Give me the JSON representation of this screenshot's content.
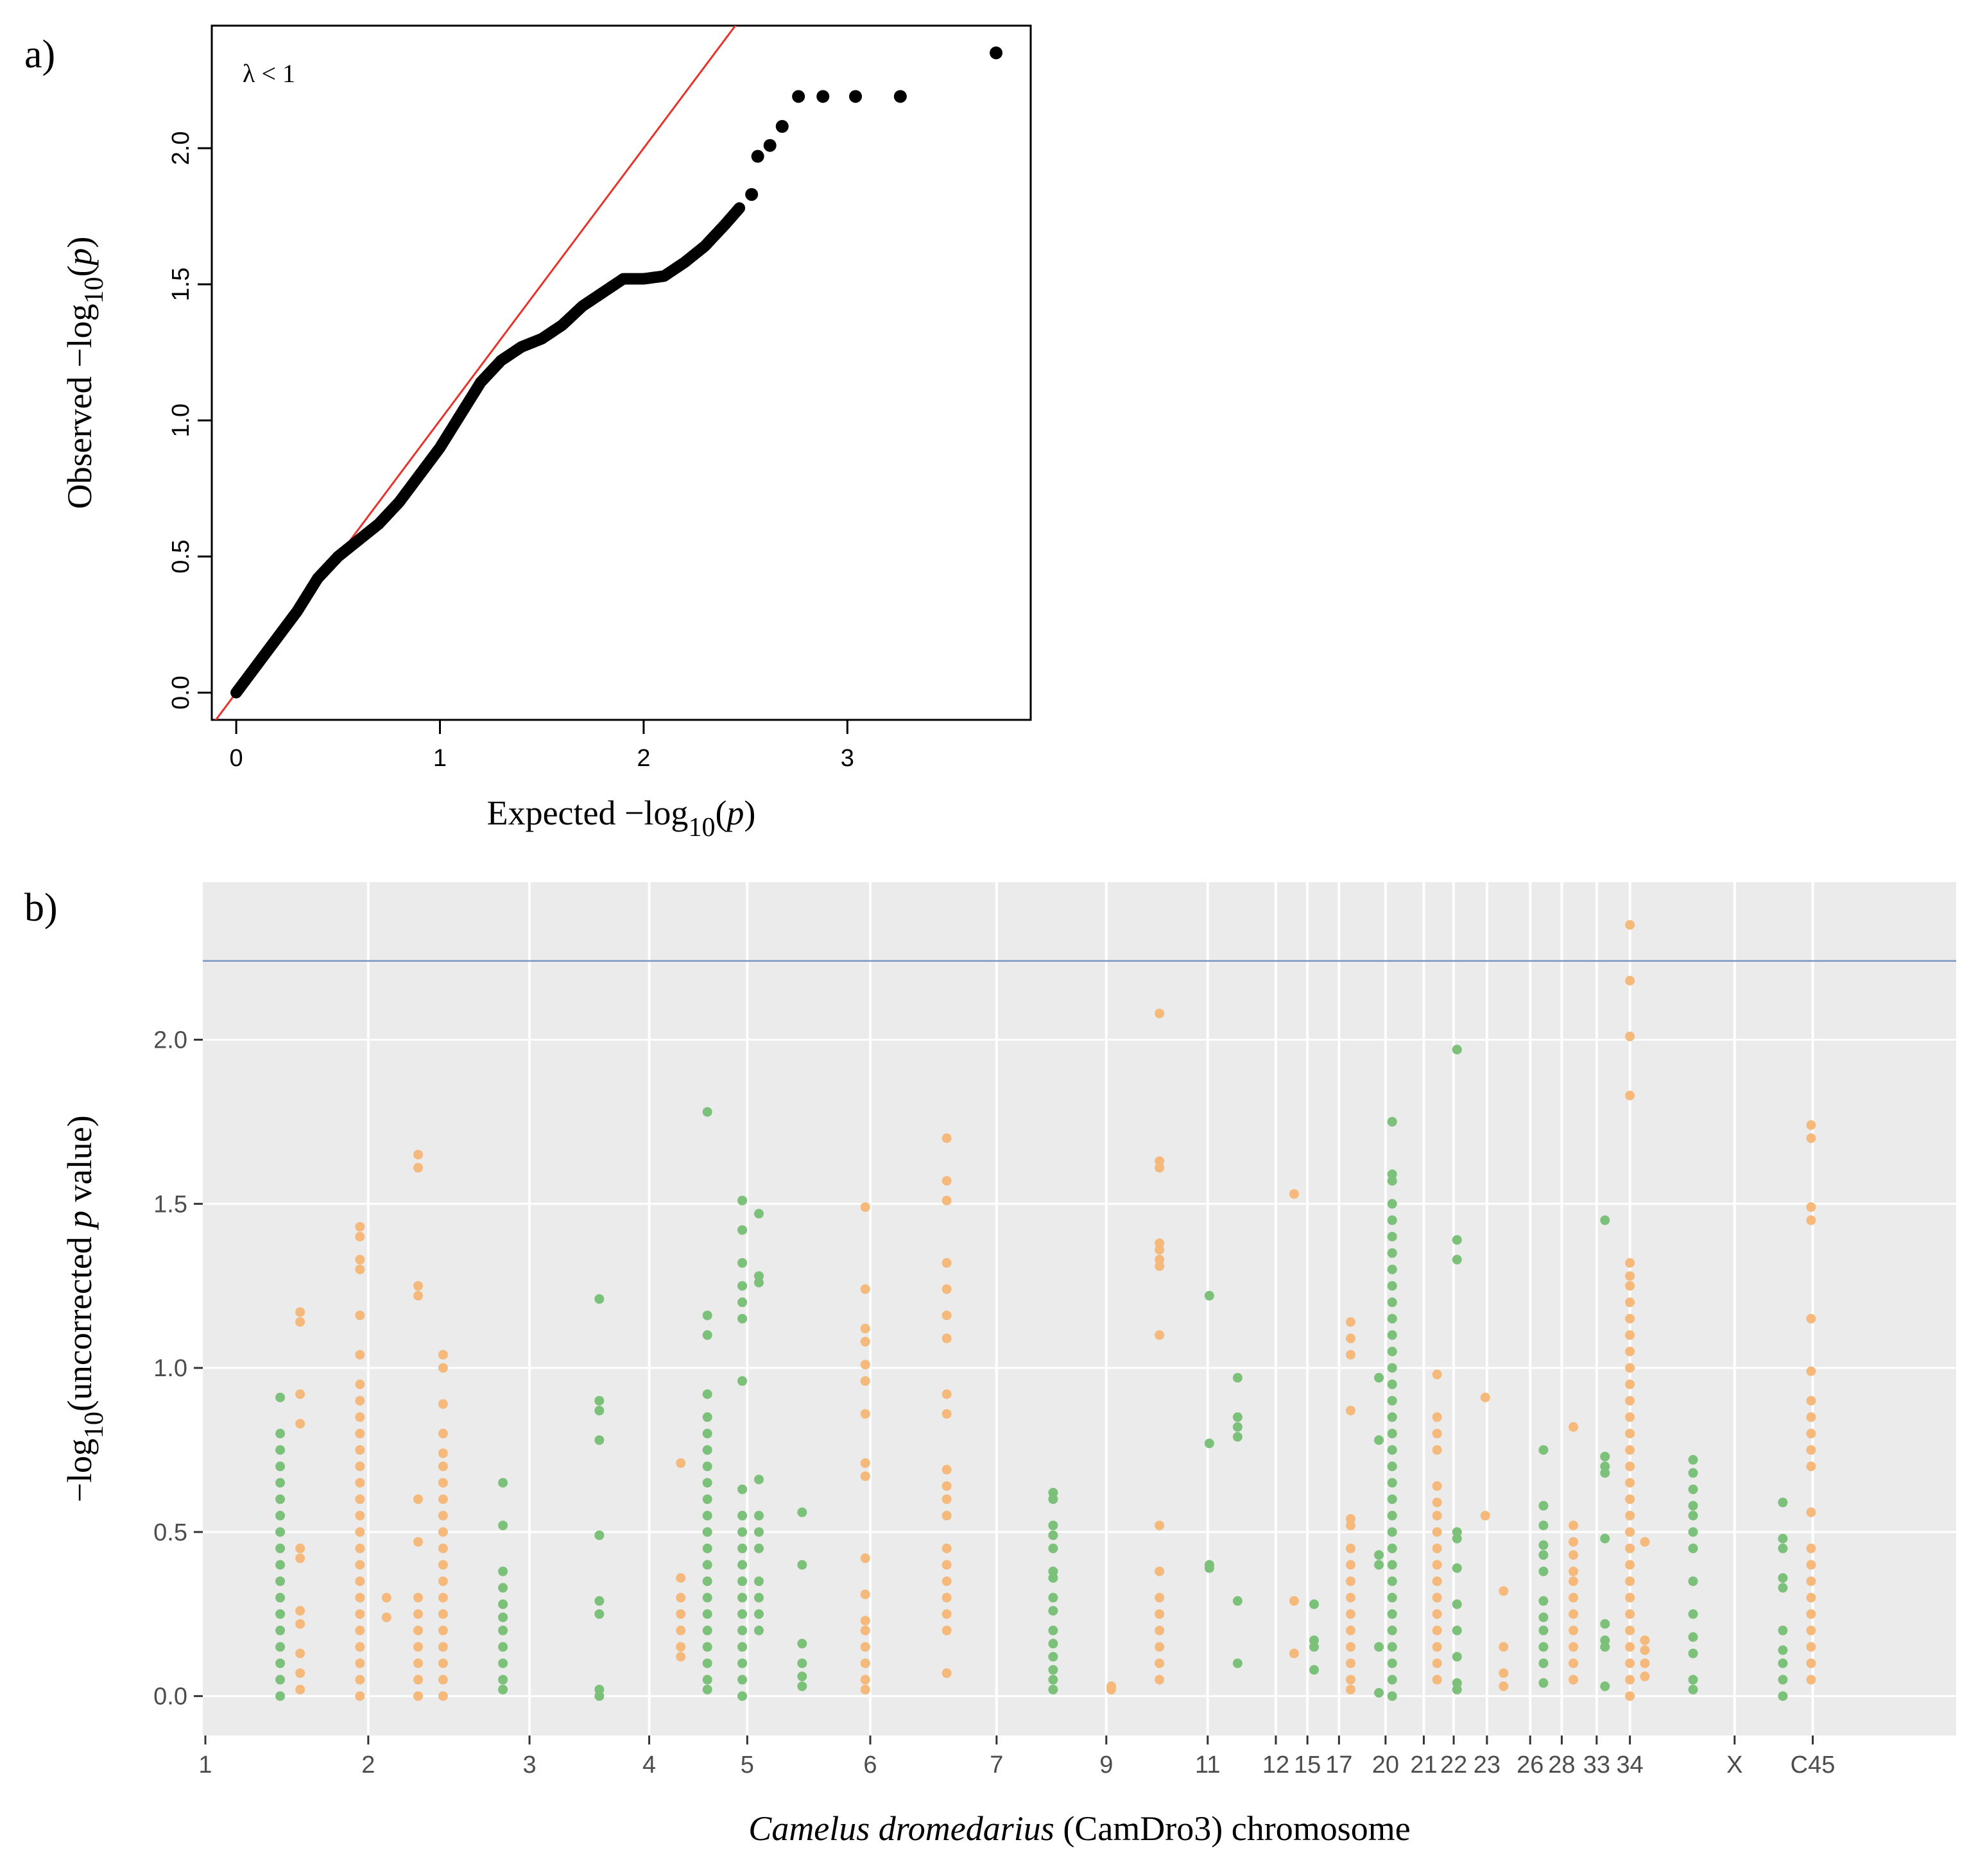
{
  "figure": {
    "panel_a_label": "a)",
    "panel_b_label": "b)",
    "colors": {
      "qq_points": "#000000",
      "qq_line": "#e8332a",
      "manhattan_bg": "#ebebeb",
      "grid": "#ffffff",
      "threshold": "#7a97c4",
      "orange": "#f5b97c",
      "green": "#7cc17a",
      "axis_text": "#4d4d4d"
    }
  },
  "chart_data": [
    {
      "type": "scatter",
      "subtype": "qq-plot",
      "title": "",
      "annotation": "λ < 1",
      "xlabel": {
        "prefix": "Expected −log",
        "sub": "10",
        "suffix_open": "(",
        "italic": "p",
        "suffix_close": ")"
      },
      "ylabel": {
        "prefix": "Observed −log",
        "sub": "10",
        "suffix_open": "(",
        "italic": "p",
        "suffix_close": ")"
      },
      "xlim": [
        -0.12,
        3.9
      ],
      "ylim": [
        -0.1,
        2.45
      ],
      "xticks": [
        0,
        1,
        2,
        3
      ],
      "xtick_labels": [
        "0",
        "1",
        "2",
        "3"
      ],
      "yticks": [
        0.0,
        0.5,
        1.0,
        1.5,
        2.0
      ],
      "ytick_labels": [
        "0.0",
        "0.5",
        "1.0",
        "1.5",
        "2.0"
      ],
      "reference_line": {
        "intercept": 0,
        "slope": 1
      },
      "curve_points": [
        [
          0.0,
          0.0
        ],
        [
          0.1,
          0.1
        ],
        [
          0.2,
          0.2
        ],
        [
          0.3,
          0.3
        ],
        [
          0.4,
          0.42
        ],
        [
          0.5,
          0.5
        ],
        [
          0.6,
          0.56
        ],
        [
          0.7,
          0.62
        ],
        [
          0.8,
          0.7
        ],
        [
          0.9,
          0.8
        ],
        [
          1.0,
          0.9
        ],
        [
          1.1,
          1.02
        ],
        [
          1.2,
          1.14
        ],
        [
          1.3,
          1.22
        ],
        [
          1.4,
          1.27
        ],
        [
          1.5,
          1.3
        ],
        [
          1.6,
          1.35
        ],
        [
          1.7,
          1.42
        ],
        [
          1.8,
          1.47
        ],
        [
          1.9,
          1.52
        ],
        [
          2.0,
          1.52
        ],
        [
          2.1,
          1.53
        ],
        [
          2.2,
          1.58
        ],
        [
          2.3,
          1.64
        ],
        [
          2.4,
          1.72
        ],
        [
          2.47,
          1.78
        ]
      ],
      "isolated_points": [
        [
          2.53,
          1.83
        ],
        [
          2.56,
          1.97
        ],
        [
          2.62,
          2.01
        ],
        [
          2.68,
          2.08
        ],
        [
          2.76,
          2.19
        ],
        [
          2.88,
          2.19
        ],
        [
          3.04,
          2.19
        ],
        [
          3.26,
          2.19
        ],
        [
          3.73,
          2.35
        ]
      ]
    },
    {
      "type": "scatter",
      "subtype": "manhattan",
      "title": "",
      "xlabel": {
        "italic": "Camelus dromedarius",
        "rest": " (CamDro3) chromosome"
      },
      "ylabel": {
        "prefix": "−log",
        "sub": "10",
        "middle": "(uncorrected ",
        "italic": "p",
        "suffix": " value)"
      },
      "ylim": [
        -0.12,
        2.48
      ],
      "yticks": [
        0.0,
        0.5,
        1.0,
        1.5,
        2.0
      ],
      "ytick_labels": [
        "0.0",
        "0.5",
        "1.0",
        "1.5",
        "2.0"
      ],
      "threshold": 2.24,
      "x_range": [
        0,
        1000
      ],
      "chromosome_ticks": [
        {
          "label": "1",
          "pos": 0
        },
        {
          "label": "2",
          "pos": 98
        },
        {
          "label": "3",
          "pos": 195
        },
        {
          "label": "4",
          "pos": 267
        },
        {
          "label": "5",
          "pos": 326
        },
        {
          "label": "6",
          "pos": 400
        },
        {
          "label": "7",
          "pos": 476
        },
        {
          "label": "9",
          "pos": 542
        },
        {
          "label": "11",
          "pos": 603
        },
        {
          "label": "12",
          "pos": 644
        },
        {
          "label": "15",
          "pos": 663
        },
        {
          "label": "17",
          "pos": 682
        },
        {
          "label": "20",
          "pos": 710
        },
        {
          "label": "21",
          "pos": 733
        },
        {
          "label": "22",
          "pos": 751
        },
        {
          "label": "23",
          "pos": 771
        },
        {
          "label": "26",
          "pos": 797
        },
        {
          "label": "28",
          "pos": 816
        },
        {
          "label": "33",
          "pos": 837
        },
        {
          "label": "34",
          "pos": 857
        },
        {
          "label": "X",
          "pos": 920
        },
        {
          "label": "C45",
          "pos": 967
        }
      ],
      "boundaries": [
        0,
        98,
        195,
        267,
        326,
        400,
        476,
        542,
        603,
        644,
        663,
        682,
        710,
        733,
        751,
        771,
        797,
        816,
        837,
        857,
        920,
        967
      ],
      "clusters": [
        {
          "x": 45,
          "color": "green",
          "values": [
            0.91,
            0.8,
            0.75,
            0.7,
            0.65,
            0.6,
            0.55,
            0.5,
            0.45,
            0.4,
            0.35,
            0.3,
            0.25,
            0.2,
            0.15,
            0.1,
            0.05,
            0.0
          ]
        },
        {
          "x": 57,
          "color": "orange",
          "values": [
            1.17,
            1.14,
            0.92,
            0.83,
            0.45,
            0.42,
            0.26,
            0.22,
            0.13,
            0.07,
            0.02
          ]
        },
        {
          "x": 93,
          "color": "orange",
          "values": [
            1.43,
            1.4,
            1.33,
            1.3,
            1.16,
            1.04,
            0.95,
            0.9,
            0.85,
            0.8,
            0.75,
            0.7,
            0.65,
            0.6,
            0.55,
            0.5,
            0.45,
            0.4,
            0.35,
            0.3,
            0.25,
            0.2,
            0.15,
            0.1,
            0.05,
            0.0
          ]
        },
        {
          "x": 109,
          "color": "orange",
          "values": [
            0.3,
            0.24
          ]
        },
        {
          "x": 128,
          "color": "orange",
          "values": [
            1.65,
            1.61,
            1.25,
            1.22,
            0.6,
            0.47,
            0.3,
            0.25,
            0.2,
            0.15,
            0.1,
            0.05,
            0.0
          ]
        },
        {
          "x": 143,
          "color": "orange",
          "values": [
            1.04,
            1.0,
            0.89,
            0.8,
            0.74,
            0.7,
            0.65,
            0.6,
            0.55,
            0.5,
            0.45,
            0.4,
            0.35,
            0.3,
            0.25,
            0.2,
            0.15,
            0.1,
            0.05,
            0.0
          ]
        },
        {
          "x": 179,
          "color": "green",
          "values": [
            0.65,
            0.52,
            0.38,
            0.33,
            0.28,
            0.24,
            0.2,
            0.15,
            0.1,
            0.05,
            0.02
          ]
        },
        {
          "x": 237,
          "color": "green",
          "values": [
            1.21,
            0.9,
            0.87,
            0.78,
            0.49,
            0.29,
            0.25,
            0.02,
            0.0
          ]
        },
        {
          "x": 286,
          "color": "orange",
          "values": [
            0.71,
            0.36,
            0.3,
            0.25,
            0.2,
            0.15,
            0.12
          ]
        },
        {
          "x": 302,
          "color": "green",
          "values": [
            1.78,
            1.16,
            1.1,
            0.92,
            0.85,
            0.8,
            0.75,
            0.7,
            0.65,
            0.6,
            0.55,
            0.5,
            0.45,
            0.4,
            0.35,
            0.3,
            0.25,
            0.2,
            0.15,
            0.1,
            0.05,
            0.02
          ]
        },
        {
          "x": 323,
          "color": "green",
          "values": [
            1.51,
            1.42,
            1.32,
            1.25,
            1.2,
            1.15,
            0.96,
            0.63,
            0.55,
            0.5,
            0.45,
            0.4,
            0.35,
            0.3,
            0.25,
            0.2,
            0.15,
            0.1,
            0.05,
            0.0
          ]
        },
        {
          "x": 333,
          "color": "green",
          "values": [
            1.47,
            1.28,
            1.26,
            0.66,
            0.55,
            0.5,
            0.45,
            0.35,
            0.3,
            0.25,
            0.2
          ]
        },
        {
          "x": 359,
          "color": "green",
          "values": [
            0.56,
            0.4,
            0.16,
            0.1,
            0.06,
            0.03
          ]
        },
        {
          "x": 397,
          "color": "orange",
          "values": [
            1.49,
            1.24,
            1.12,
            1.08,
            1.01,
            0.96,
            0.86,
            0.71,
            0.67,
            0.42,
            0.31,
            0.23,
            0.2,
            0.15,
            0.1,
            0.05,
            0.02
          ]
        },
        {
          "x": 446,
          "color": "orange",
          "values": [
            1.7,
            1.57,
            1.51,
            1.32,
            1.24,
            1.16,
            1.09,
            0.92,
            0.86,
            0.69,
            0.64,
            0.6,
            0.55,
            0.45,
            0.4,
            0.35,
            0.3,
            0.25,
            0.2,
            0.07
          ]
        },
        {
          "x": 510,
          "color": "green",
          "values": [
            0.62,
            0.6,
            0.52,
            0.49,
            0.45,
            0.38,
            0.36,
            0.3,
            0.26,
            0.2,
            0.16,
            0.12,
            0.08,
            0.05,
            0.02
          ]
        },
        {
          "x": 545,
          "color": "orange",
          "values": [
            0.03,
            0.02
          ]
        },
        {
          "x": 574,
          "color": "orange",
          "values": [
            2.08,
            1.63,
            1.61,
            1.38,
            1.36,
            1.33,
            1.31,
            1.1,
            0.52,
            0.38,
            0.3,
            0.25,
            0.2,
            0.15,
            0.1,
            0.05
          ]
        },
        {
          "x": 604,
          "color": "green",
          "values": [
            1.22,
            0.77,
            0.4,
            0.39
          ]
        },
        {
          "x": 621,
          "color": "green",
          "values": [
            0.97,
            0.85,
            0.82,
            0.79,
            0.29,
            0.1
          ]
        },
        {
          "x": 655,
          "color": "orange",
          "values": [
            1.53,
            0.29,
            0.13
          ]
        },
        {
          "x": 667,
          "color": "green",
          "values": [
            0.28,
            0.17,
            0.15,
            0.08
          ]
        },
        {
          "x": 689,
          "color": "orange",
          "values": [
            1.14,
            1.09,
            1.04,
            0.87,
            0.54,
            0.52,
            0.45,
            0.4,
            0.35,
            0.3,
            0.25,
            0.2,
            0.15,
            0.1,
            0.05,
            0.02
          ]
        },
        {
          "x": 706,
          "color": "green",
          "values": [
            0.97,
            0.78,
            0.43,
            0.4,
            0.15,
            0.01
          ]
        },
        {
          "x": 714,
          "color": "green",
          "values": [
            1.75,
            1.59,
            1.57,
            1.5,
            1.45,
            1.4,
            1.35,
            1.3,
            1.25,
            1.2,
            1.15,
            1.1,
            1.05,
            1.0,
            0.95,
            0.9,
            0.85,
            0.8,
            0.75,
            0.7,
            0.65,
            0.6,
            0.55,
            0.5,
            0.45,
            0.4,
            0.35,
            0.3,
            0.25,
            0.2,
            0.15,
            0.1,
            0.05,
            0.0
          ]
        },
        {
          "x": 741,
          "color": "orange",
          "values": [
            0.98,
            0.85,
            0.8,
            0.75,
            0.64,
            0.59,
            0.55,
            0.5,
            0.45,
            0.4,
            0.35,
            0.3,
            0.25,
            0.2,
            0.15,
            0.1,
            0.05
          ]
        },
        {
          "x": 753,
          "color": "green",
          "values": [
            1.97,
            1.39,
            1.33,
            0.5,
            0.48,
            0.39,
            0.28,
            0.2,
            0.12,
            0.04,
            0.02
          ]
        },
        {
          "x": 770,
          "color": "orange",
          "values": [
            0.91,
            0.55
          ]
        },
        {
          "x": 781,
          "color": "orange",
          "values": [
            0.32,
            0.15,
            0.07,
            0.03
          ]
        },
        {
          "x": 805,
          "color": "green",
          "values": [
            0.75,
            0.58,
            0.52,
            0.46,
            0.43,
            0.38,
            0.29,
            0.24,
            0.2,
            0.15,
            0.1,
            0.04
          ]
        },
        {
          "x": 823,
          "color": "orange",
          "values": [
            0.82,
            0.52,
            0.47,
            0.43,
            0.38,
            0.35,
            0.3,
            0.25,
            0.2,
            0.15,
            0.1,
            0.05
          ]
        },
        {
          "x": 842,
          "color": "green",
          "values": [
            1.45,
            0.73,
            0.7,
            0.68,
            0.48,
            0.22,
            0.17,
            0.15,
            0.03
          ]
        },
        {
          "x": 857,
          "color": "orange",
          "values": [
            2.35,
            2.18,
            2.01,
            1.83,
            1.32,
            1.28,
            1.25,
            1.2,
            1.15,
            1.1,
            1.05,
            1.0,
            0.95,
            0.9,
            0.85,
            0.8,
            0.75,
            0.7,
            0.65,
            0.6,
            0.55,
            0.5,
            0.45,
            0.4,
            0.35,
            0.3,
            0.25,
            0.2,
            0.15,
            0.1,
            0.05,
            0.0
          ]
        },
        {
          "x": 866,
          "color": "orange",
          "values": [
            0.47,
            0.17,
            0.14,
            0.1,
            0.06
          ]
        },
        {
          "x": 895,
          "color": "green",
          "values": [
            0.72,
            0.68,
            0.63,
            0.58,
            0.55,
            0.5,
            0.45,
            0.35,
            0.25,
            0.18,
            0.13,
            0.05,
            0.02
          ]
        },
        {
          "x": 949,
          "color": "green",
          "values": [
            0.59,
            0.48,
            0.45,
            0.36,
            0.33,
            0.2,
            0.14,
            0.1,
            0.05,
            0.0
          ]
        },
        {
          "x": 966,
          "color": "orange",
          "values": [
            1.74,
            1.7,
            1.49,
            1.45,
            1.15,
            0.99,
            0.9,
            0.85,
            0.8,
            0.75,
            0.7,
            0.56,
            0.45,
            0.4,
            0.35,
            0.3,
            0.25,
            0.2,
            0.15,
            0.1,
            0.05
          ]
        }
      ]
    }
  ]
}
